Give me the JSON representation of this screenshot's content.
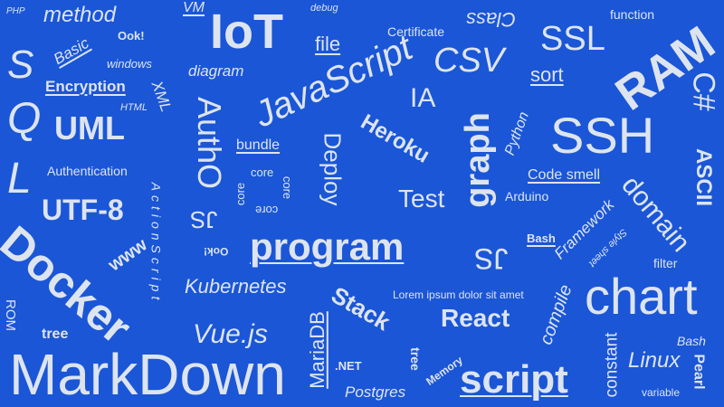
{
  "background_color": "#1a56d6",
  "text_color": "#dde4ee",
  "words": [
    "PHP",
    "method",
    "VM",
    "debug",
    "IoT",
    "Class",
    "function",
    "Ook!",
    "Basic",
    "file",
    "Certificate",
    "SSL",
    "S",
    "windows",
    "diagram",
    "CSV",
    "RAM",
    "Encryption",
    "JavaScript",
    "sort",
    "XML",
    "IA",
    "HTML",
    "Q",
    "UML",
    "AuthO",
    "Heroku",
    "SSH",
    "C#",
    "Python",
    "bundle",
    "Deploy",
    "graph",
    "Authentication",
    "ActionScript",
    "core",
    "core",
    "core",
    "core",
    "Code smell",
    "ASCII",
    "L",
    "Test",
    "UTF-8",
    "Arduino",
    "domain",
    "JS",
    "Bash",
    "Style sheet",
    "Framework",
    "Docker",
    "www",
    "Ook!",
    "program",
    "JS",
    "filter",
    "Kubernetes",
    "chart",
    "Stack",
    "Lorem ipsum dolor sit amet",
    "compile",
    "ROM",
    "React",
    "tree",
    "Vue.js",
    "MariaDB",
    "Bash",
    "constant",
    ".NET",
    "tree",
    "Memory",
    "Linux",
    "Pearl",
    "MarkDown",
    "Postgres",
    "script",
    "variable"
  ]
}
